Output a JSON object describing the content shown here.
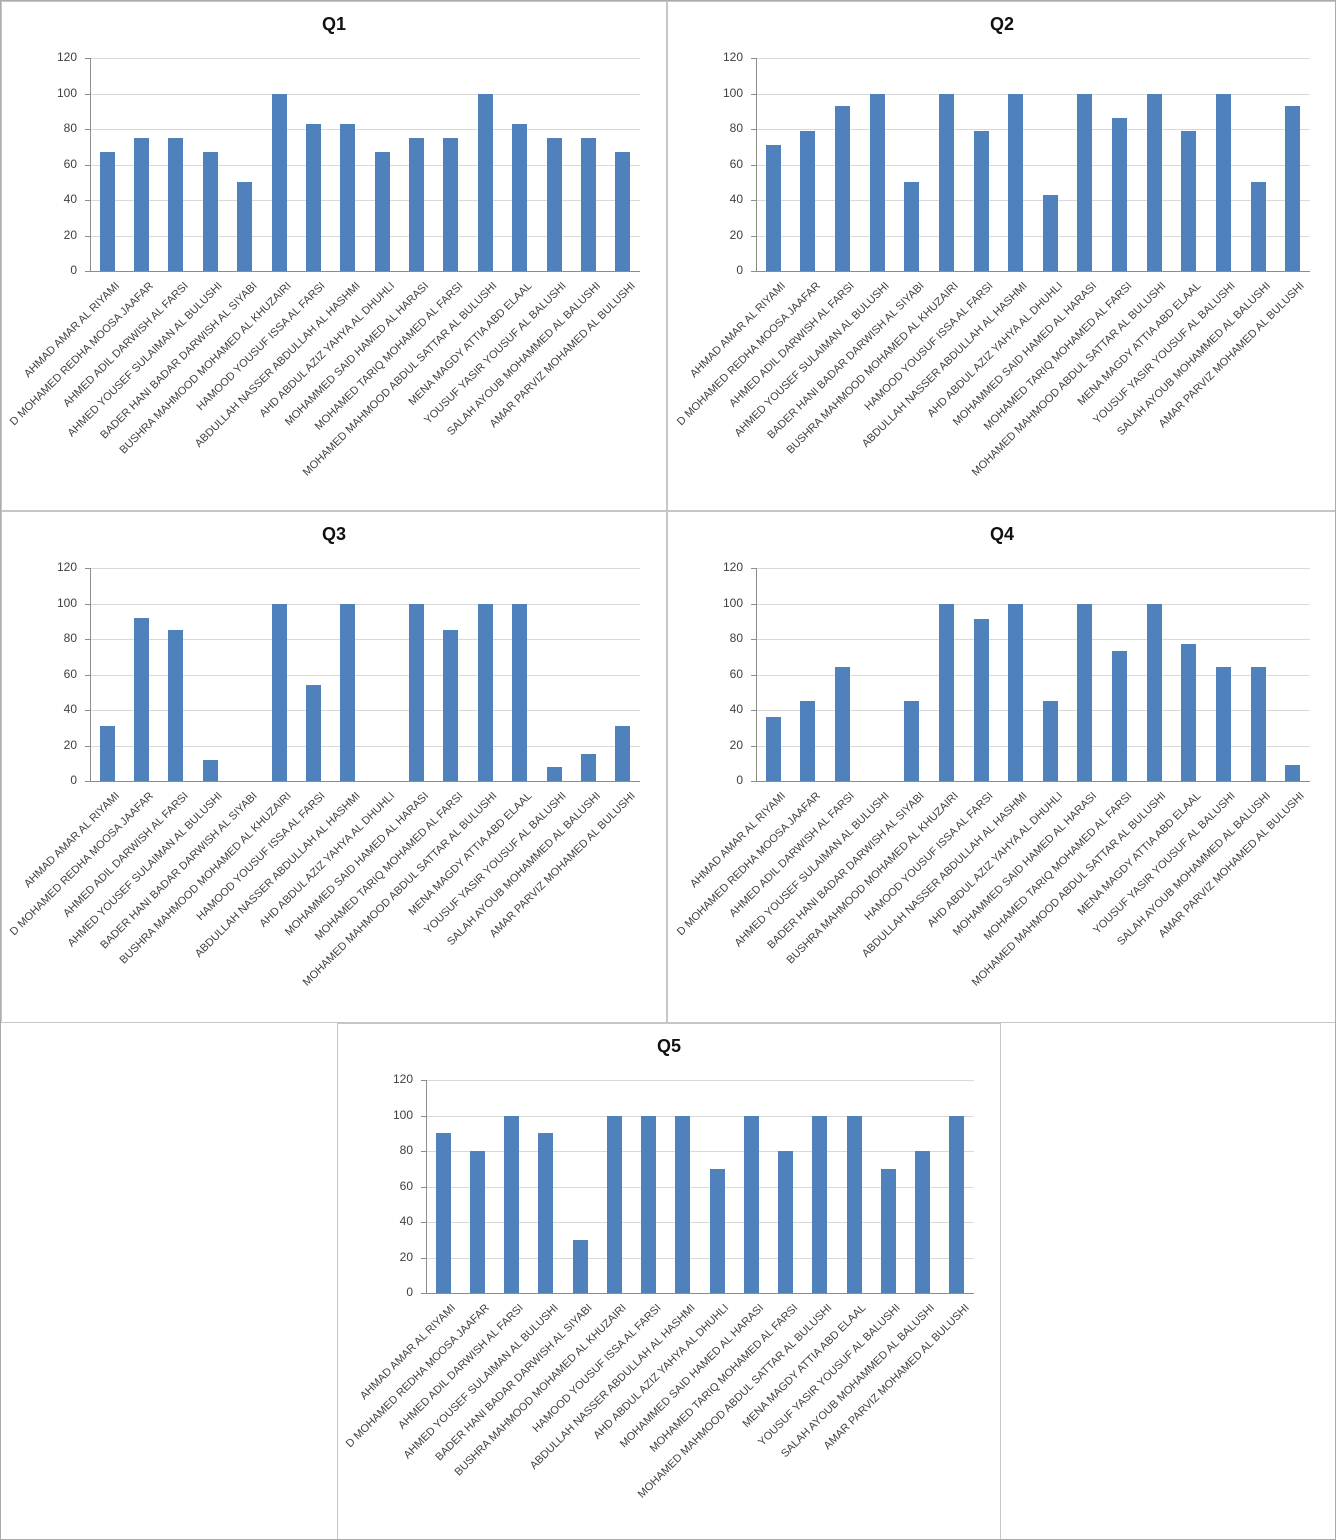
{
  "style": {
    "bar_color": "#4F81BD",
    "grid_color": "#D9D9D9",
    "axis_color": "#8C8C8C",
    "text_color": "#404040"
  },
  "chart_data": [
    {
      "type": "bar",
      "title": "Q1",
      "xlabel": "",
      "ylabel": "",
      "ylim": [
        0,
        120
      ],
      "y_ticks": [
        0,
        20,
        40,
        60,
        80,
        100,
        120
      ],
      "grid": true,
      "legend": false,
      "categories": [
        "AHMAD AMAR AL RIYAMI",
        "D MOHAMED REDHA MOOSA JAAFAR",
        "AHMED ADIL DARWISH AL FARSI",
        "AHMED YOUSEF SULAIMAN AL BULUSHI",
        "BADER HANI BADAR DARWISH AL SIYABI",
        "BUSHRA MAHMOOD MOHAMED AL KHUZAIRI",
        "HAMOOD YOUSUF ISSA AL FARSI",
        "ABDULLAH NASSER ABDULLAH AL HASHMI",
        "AHD ABDUL AZIZ YAHYA AL DHUHLI",
        "MOHAMMED SAID HAMED AL HARASI",
        "MOHAMED TARIQ MOHAMED AL FARSI",
        "MOHAMED MAHMOOD ABDUL SATTAR AL BULUSHI",
        "MENA MAGDY ATTIA ABD ELAAL",
        "YOUSUF YASIR YOUSUF AL BALUSHI",
        "SALAH AYOUB MOHAMMED AL BALUSHI",
        "AMAR PARVIZ MOHAMED AL BULUSHI"
      ],
      "values": [
        67,
        75,
        75,
        67,
        50,
        100,
        83,
        83,
        67,
        75,
        75,
        100,
        83,
        75,
        75,
        67
      ]
    },
    {
      "type": "bar",
      "title": "Q2",
      "xlabel": "",
      "ylabel": "",
      "ylim": [
        0,
        120
      ],
      "y_ticks": [
        0,
        20,
        40,
        60,
        80,
        100,
        120
      ],
      "grid": true,
      "legend": false,
      "categories": [
        "AHMAD AMAR AL RIYAMI",
        "D MOHAMED REDHA MOOSA JAAFAR",
        "AHMED ADIL DARWISH AL FARSI",
        "AHMED YOUSEF SULAIMAN AL BULUSHI",
        "BADER HANI BADAR DARWISH AL SIYABI",
        "BUSHRA MAHMOOD MOHAMED AL KHUZAIRI",
        "HAMOOD YOUSUF ISSA AL FARSI",
        "ABDULLAH NASSER ABDULLAH AL HASHMI",
        "AHD ABDUL AZIZ YAHYA AL DHUHLI",
        "MOHAMMED SAID HAMED AL HARASI",
        "MOHAMED TARIQ MOHAMED AL FARSI",
        "MOHAMED MAHMOOD ABDUL SATTAR AL BULUSHI",
        "MENA MAGDY ATTIA ABD ELAAL",
        "YOUSUF YASIR YOUSUF AL BALUSHI",
        "SALAH AYOUB MOHAMMED AL BALUSHI",
        "AMAR PARVIZ MOHAMED AL BULUSHI"
      ],
      "values": [
        71,
        79,
        93,
        100,
        50,
        100,
        79,
        100,
        43,
        100,
        86,
        100,
        79,
        100,
        50,
        93
      ]
    },
    {
      "type": "bar",
      "title": "Q3",
      "xlabel": "",
      "ylabel": "",
      "ylim": [
        0,
        120
      ],
      "y_ticks": [
        0,
        20,
        40,
        60,
        80,
        100,
        120
      ],
      "grid": true,
      "legend": false,
      "categories": [
        "AHMAD AMAR AL RIYAMI",
        "D MOHAMED REDHA MOOSA JAAFAR",
        "AHMED ADIL DARWISH AL FARSI",
        "AHMED YOUSEF SULAIMAN AL BULUSHI",
        "BADER HANI BADAR DARWISH AL SIYABI",
        "BUSHRA MAHMOOD MOHAMED AL KHUZAIRI",
        "HAMOOD YOUSUF ISSA AL FARSI",
        "ABDULLAH NASSER ABDULLAH AL HASHMI",
        "AHD ABDUL AZIZ YAHYA AL DHUHLI",
        "MOHAMMED SAID HAMED AL HARASI",
        "MOHAMED TARIQ MOHAMED AL FARSI",
        "MOHAMED MAHMOOD ABDUL SATTAR AL BULUSHI",
        "MENA MAGDY ATTIA ABD ELAAL",
        "YOUSUF YASIR YOUSUF AL BALUSHI",
        "SALAH AYOUB MOHAMMED AL BALUSHI",
        "AMAR PARVIZ MOHAMED AL BULUSHI"
      ],
      "values": [
        31,
        92,
        85,
        12,
        0,
        100,
        54,
        100,
        0,
        100,
        85,
        100,
        100,
        8,
        15,
        31
      ]
    },
    {
      "type": "bar",
      "title": "Q4",
      "xlabel": "",
      "ylabel": "",
      "ylim": [
        0,
        120
      ],
      "y_ticks": [
        0,
        20,
        40,
        60,
        80,
        100,
        120
      ],
      "grid": true,
      "legend": false,
      "categories": [
        "AHMAD AMAR AL RIYAMI",
        "D MOHAMED REDHA MOOSA JAAFAR",
        "AHMED ADIL DARWISH AL FARSI",
        "AHMED YOUSEF SULAIMAN AL BULUSHI",
        "BADER HANI BADAR DARWISH AL SIYABI",
        "BUSHRA MAHMOOD MOHAMED AL KHUZAIRI",
        "HAMOOD YOUSUF ISSA AL FARSI",
        "ABDULLAH NASSER ABDULLAH AL HASHMI",
        "AHD ABDUL AZIZ YAHYA AL DHUHLI",
        "MOHAMMED SAID HAMED AL HARASI",
        "MOHAMED TARIQ MOHAMED AL FARSI",
        "MOHAMED MAHMOOD ABDUL SATTAR AL BULUSHI",
        "MENA MAGDY ATTIA ABD ELAAL",
        "YOUSUF YASIR YOUSUF AL BALUSHI",
        "SALAH AYOUB MOHAMMED AL BALUSHI",
        "AMAR PARVIZ MOHAMED AL BULUSHI"
      ],
      "values": [
        36,
        45,
        64,
        0,
        45,
        100,
        91,
        100,
        45,
        100,
        73,
        100,
        77,
        64,
        64,
        9
      ]
    },
    {
      "type": "bar",
      "title": "Q5",
      "xlabel": "",
      "ylabel": "",
      "ylim": [
        0,
        120
      ],
      "y_ticks": [
        0,
        20,
        40,
        60,
        80,
        100,
        120
      ],
      "grid": true,
      "legend": false,
      "categories": [
        "AHMAD AMAR AL RIYAMI",
        "D MOHAMED REDHA MOOSA JAAFAR",
        "AHMED ADIL DARWISH AL FARSI",
        "AHMED YOUSEF SULAIMAN AL BULUSHI",
        "BADER HANI BADAR DARWISH AL SIYABI",
        "BUSHRA MAHMOOD MOHAMED AL KHUZAIRI",
        "HAMOOD YOUSUF ISSA AL FARSI",
        "ABDULLAH NASSER ABDULLAH AL HASHMI",
        "AHD ABDUL AZIZ YAHYA AL DHUHLI",
        "MOHAMMED SAID HAMED AL HARASI",
        "MOHAMED TARIQ MOHAMED AL FARSI",
        "MOHAMED MAHMOOD ABDUL SATTAR AL BULUSHI",
        "MENA MAGDY ATTIA ABD ELAAL",
        "YOUSUF YASIR YOUSUF AL BALUSHI",
        "SALAH AYOUB MOHAMMED AL BALUSHI",
        "AMAR PARVIZ MOHAMED AL BULUSHI"
      ],
      "values": [
        90,
        80,
        100,
        90,
        30,
        100,
        100,
        100,
        70,
        100,
        80,
        100,
        100,
        70,
        80,
        100
      ]
    }
  ]
}
